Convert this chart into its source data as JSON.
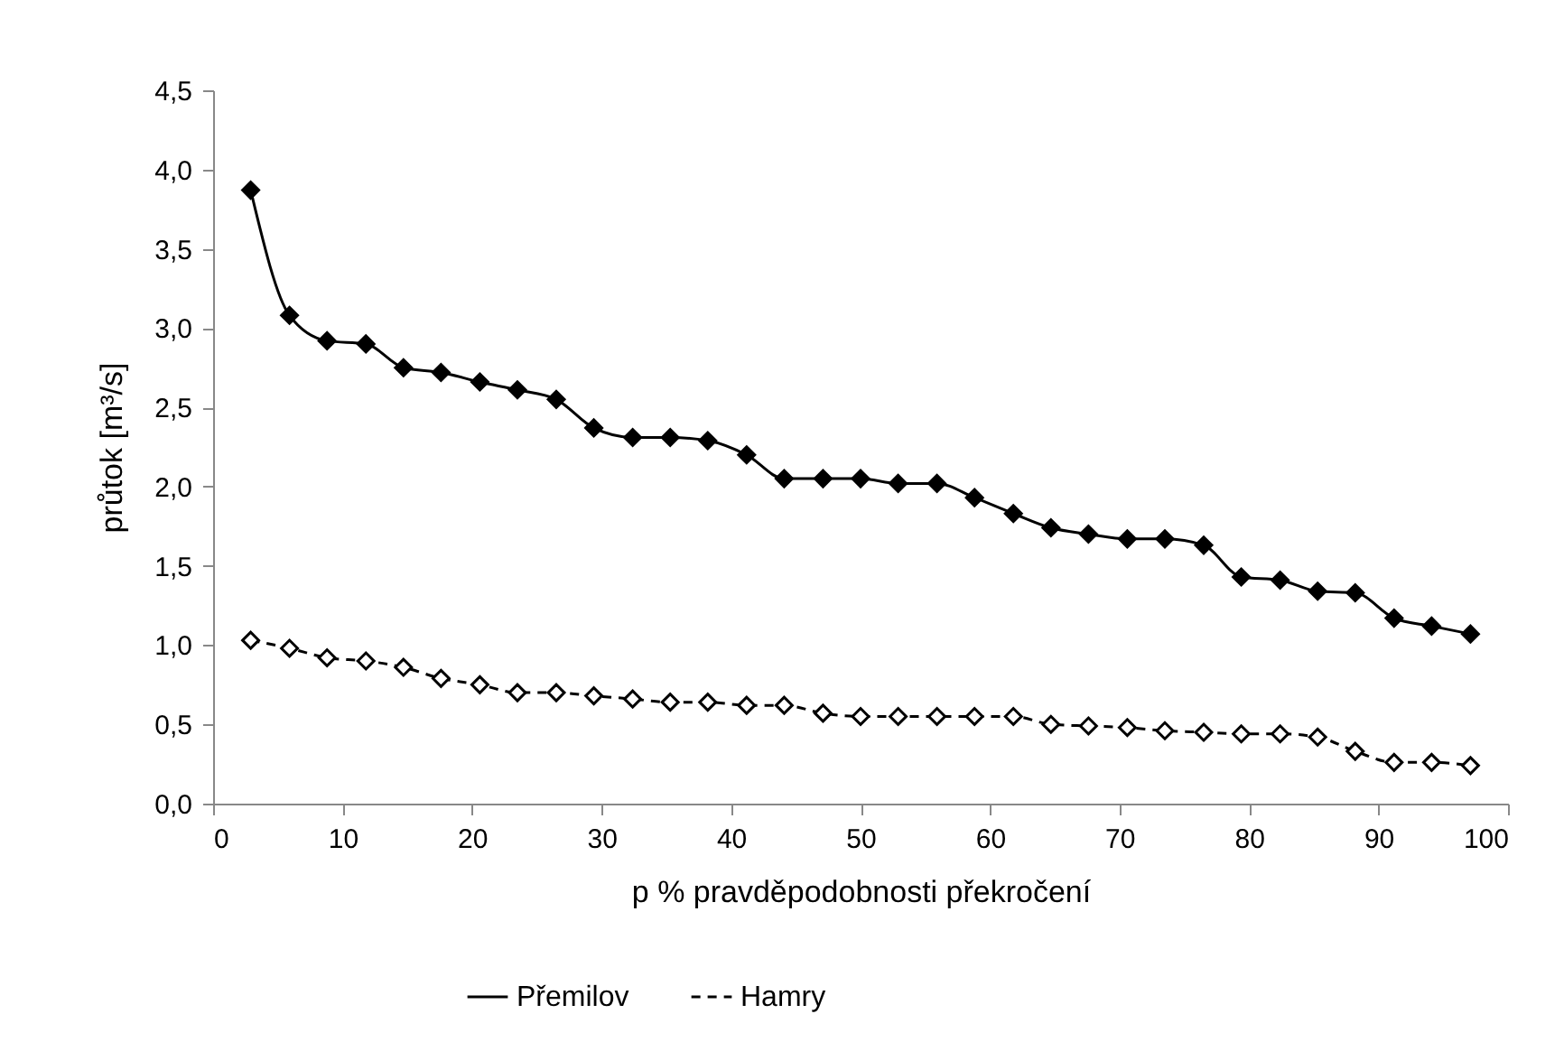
{
  "chart_data": {
    "type": "line",
    "xlabel": "p % pravděpodobnosti překročení",
    "ylabel": "průtok [m³/s]",
    "x": [
      2.9,
      5.9,
      8.8,
      11.8,
      14.7,
      17.6,
      20.6,
      23.5,
      26.5,
      29.4,
      32.4,
      35.3,
      38.2,
      41.2,
      44.1,
      47.1,
      50.0,
      52.9,
      55.9,
      58.8,
      61.8,
      64.7,
      67.6,
      70.6,
      73.5,
      76.5,
      79.4,
      82.4,
      85.3,
      88.2,
      91.2,
      94.1,
      97.1
    ],
    "series": [
      {
        "name": "Přemilov",
        "color": "#000000",
        "line_style": "solid",
        "values": [
          3.87,
          3.08,
          2.92,
          2.9,
          2.75,
          2.72,
          2.66,
          2.61,
          2.55,
          2.37,
          2.31,
          2.31,
          2.29,
          2.2,
          2.05,
          2.05,
          2.05,
          2.02,
          2.02,
          1.93,
          1.83,
          1.74,
          1.7,
          1.67,
          1.67,
          1.63,
          1.43,
          1.41,
          1.34,
          1.33,
          1.17,
          1.12,
          1.07
        ]
      },
      {
        "name": "Hamry",
        "color": "#000000",
        "line_style": "dashed",
        "values": [
          1.03,
          0.98,
          0.92,
          0.9,
          0.86,
          0.79,
          0.75,
          0.7,
          0.7,
          0.68,
          0.66,
          0.64,
          0.64,
          0.62,
          0.62,
          0.57,
          0.55,
          0.55,
          0.55,
          0.55,
          0.55,
          0.5,
          0.49,
          0.48,
          0.46,
          0.45,
          0.44,
          0.44,
          0.42,
          0.33,
          0.26,
          0.26,
          0.24
        ]
      }
    ],
    "xlim": [
      0,
      100
    ],
    "xticks": [
      0,
      10,
      20,
      30,
      40,
      50,
      60,
      70,
      80,
      90,
      100
    ],
    "ylim": [
      0,
      4.5
    ],
    "yticks": [
      {
        "value": 0,
        "label": "0,0"
      },
      {
        "value": 0.5,
        "label": "0,5"
      },
      {
        "value": 1,
        "label": "1,0"
      },
      {
        "value": 1.5,
        "label": "1,5"
      },
      {
        "value": 2,
        "label": "2,0"
      },
      {
        "value": 2.5,
        "label": "2,5"
      },
      {
        "value": 3,
        "label": "3,0"
      },
      {
        "value": 3.5,
        "label": "3,5"
      },
      {
        "value": 4,
        "label": "4,0"
      },
      {
        "value": 4.5,
        "label": "4,5"
      }
    ],
    "grid": false,
    "legend": "bottom",
    "marker": "diamond"
  }
}
